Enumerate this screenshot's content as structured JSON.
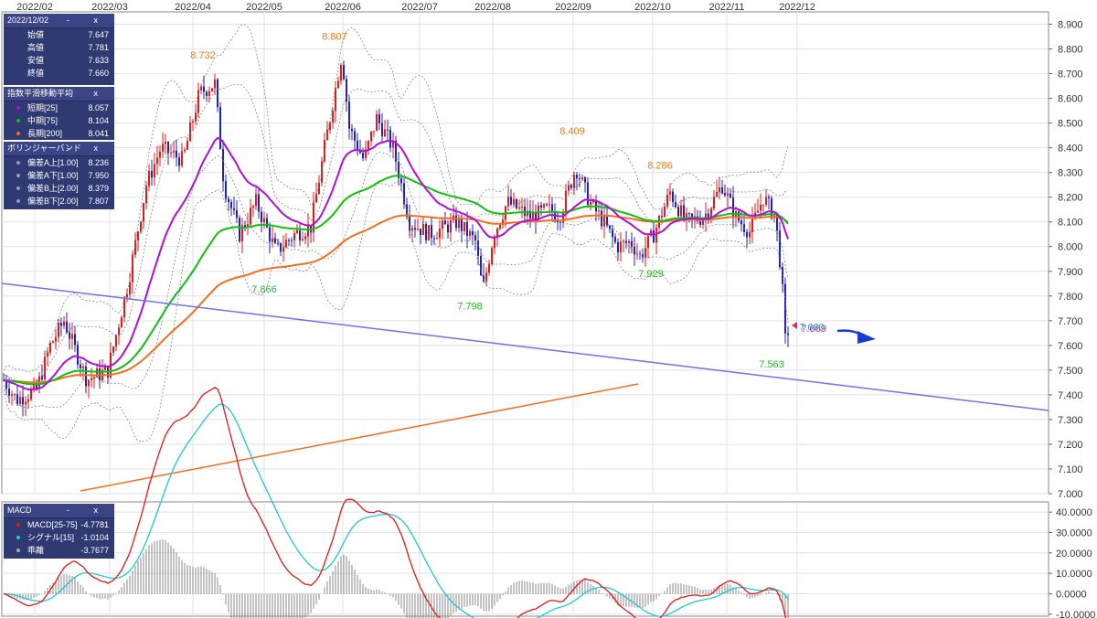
{
  "chart_data": {
    "type": "candlestick",
    "x_axis_labels": [
      "2022/02",
      "2022/03",
      "2022/04",
      "2022/05",
      "2022/06",
      "2022/07",
      "2022/08",
      "2022/09",
      "2022/10",
      "2022/11",
      "2022/12"
    ],
    "y_axis_ticks": [
      "8.900",
      "8.800",
      "8.700",
      "8.600",
      "8.500",
      "8.400",
      "8.300",
      "8.200",
      "8.100",
      "8.000",
      "7.900",
      "7.800",
      "7.700",
      "7.600",
      "7.500",
      "7.400",
      "7.300",
      "7.200",
      "7.100",
      "7.000"
    ],
    "ylim": [
      7.0,
      8.95
    ],
    "annotations": [
      {
        "label": "8.732",
        "value": 8.732,
        "color": "#f07a20"
      },
      {
        "label": "8.807",
        "value": 8.807,
        "color": "#f07a20"
      },
      {
        "label": "8.409",
        "value": 8.409,
        "color": "#f07a20"
      },
      {
        "label": "8.286",
        "value": 8.286,
        "color": "#f07a20"
      },
      {
        "label": "7.866",
        "value": 7.866,
        "color": "#28b828"
      },
      {
        "label": "7.798",
        "value": 7.798,
        "color": "#28b828"
      },
      {
        "label": "7.929",
        "value": 7.929,
        "color": "#28b828"
      },
      {
        "label": "7.563",
        "value": 7.563,
        "color": "#28b828"
      },
      {
        "label": "7.669",
        "value": 7.669,
        "color": "#e8206a"
      },
      {
        "label": "7.660",
        "value": 7.66,
        "color": "#20a8d8"
      }
    ],
    "macd": {
      "y_axis_ticks": [
        "40.0000",
        "30.0000",
        "20.0000",
        "10.0000",
        "0.0000",
        "-10.0000"
      ],
      "ylim": [
        -11,
        45
      ]
    },
    "colors": {
      "up": "#e81818",
      "down": "#2020c8",
      "ema_short": "#b010d8",
      "ema_mid": "#10c010",
      "ema_long": "#f07020",
      "trend": "#7070f0",
      "macd": "#e81818",
      "signal": "#20c8d8",
      "hist": "#888888",
      "band": "#777777"
    }
  },
  "panels": {
    "ohlc": {
      "date": "2022/12/02",
      "rows": [
        {
          "label": "始値",
          "value": "7.647"
        },
        {
          "label": "高値",
          "value": "7.781"
        },
        {
          "label": "安値",
          "value": "7.633"
        },
        {
          "label": "終値",
          "value": "7.660"
        }
      ]
    },
    "ema": {
      "title": "指数平滑移動平均",
      "rows": [
        {
          "label": "短期[25]",
          "value": "8.057",
          "color": "#b010d8"
        },
        {
          "label": "中期[75]",
          "value": "8.104",
          "color": "#10c010"
        },
        {
          "label": "長期[200]",
          "value": "8.041",
          "color": "#f07020"
        }
      ]
    },
    "bollinger": {
      "title": "ボリンジャーバンド",
      "rows": [
        {
          "label": "偏差A上[1.00]",
          "value": "8.236",
          "color": "#aaaaaa"
        },
        {
          "label": "偏差A下[1.00]",
          "value": "7.950",
          "color": "#aaaaaa"
        },
        {
          "label": "偏差B上[2.00]",
          "value": "8.379",
          "color": "#aaaaaa"
        },
        {
          "label": "偏差B下[2.00]",
          "value": "7.807",
          "color": "#aaaaaa"
        }
      ]
    },
    "macd": {
      "title": "MACD",
      "rows": [
        {
          "label": "MACD[25-75]",
          "value": "-4.7781",
          "color": "#e81818"
        },
        {
          "label": "シグナル[15]",
          "value": "-1.0104",
          "color": "#20c8d8"
        },
        {
          "label": "乖離",
          "value": "-3.7677",
          "color": "#aaaaaa"
        }
      ]
    },
    "controls": "- x"
  }
}
